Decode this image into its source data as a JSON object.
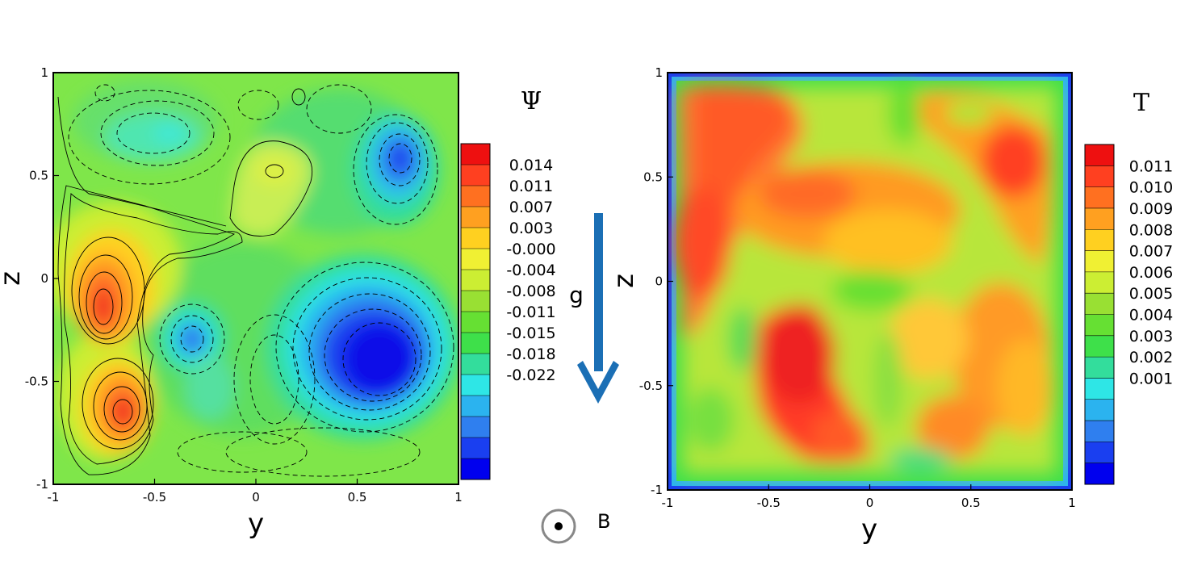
{
  "chart_data": [
    {
      "type": "heatmap",
      "title": "",
      "xlabel": "y",
      "ylabel": "z",
      "xlim": [
        -1,
        1
      ],
      "ylim": [
        -1,
        1
      ],
      "x_ticks": [
        "-1",
        "-0.5",
        "0",
        "0.5",
        "1"
      ],
      "y_ticks": [
        "1",
        "0.5",
        "0",
        "-0.5",
        "-1"
      ],
      "colorbar_title": "Ψ",
      "colorbar_labels": [
        "0.014",
        "0.011",
        "0.007",
        "0.003",
        "-0.000",
        "-0.004",
        "-0.008",
        "-0.011",
        "-0.015",
        "-0.018",
        "-0.022"
      ],
      "contour_lines": true,
      "features": [
        {
          "y": -0.75,
          "z": -0.15,
          "value": 0.016
        },
        {
          "y": -0.67,
          "z": -0.65,
          "value": 0.016
        },
        {
          "y": -0.8,
          "z": 0.15,
          "value": 0.008
        },
        {
          "y": 0.1,
          "z": 0.52,
          "value": 0.006
        },
        {
          "y": 0.7,
          "z": 0.58,
          "value": -0.021
        },
        {
          "y": 0.5,
          "z": -0.35,
          "value": -0.023
        },
        {
          "y": -0.3,
          "z": -0.3,
          "value": -0.016
        },
        {
          "y": -0.4,
          "z": 0.7,
          "value": -0.011
        },
        {
          "y": 0.1,
          "z": -0.5,
          "value": -0.008
        }
      ]
    },
    {
      "type": "heatmap",
      "title": "",
      "xlabel": "y",
      "ylabel": "z",
      "xlim": [
        -1,
        1
      ],
      "ylim": [
        -1,
        1
      ],
      "x_ticks": [
        "-1",
        "-0.5",
        "0",
        "0.5",
        "1"
      ],
      "y_ticks": [
        "1",
        "0.5",
        "0",
        "-0.5",
        "-1"
      ],
      "colorbar_title": "T",
      "colorbar_labels": [
        "0.011",
        "0.010",
        "0.009",
        "0.008",
        "0.007",
        "0.006",
        "0.005",
        "0.004",
        "0.003",
        "0.002",
        "0.001"
      ],
      "contour_lines": false
    }
  ],
  "annotations": {
    "gravity_label": "g",
    "field_label": "B",
    "gravity_color": "#1b6fb5"
  },
  "colormap": [
    "#0000ee",
    "#1a3ff0",
    "#2f7fef",
    "#2bb3ef",
    "#2ee6e6",
    "#33dd9c",
    "#3ee04a",
    "#66e033",
    "#99e033",
    "#ccee33",
    "#f0f033",
    "#ffd020",
    "#ffa020",
    "#ff7020",
    "#ff4020",
    "#ee1010"
  ]
}
